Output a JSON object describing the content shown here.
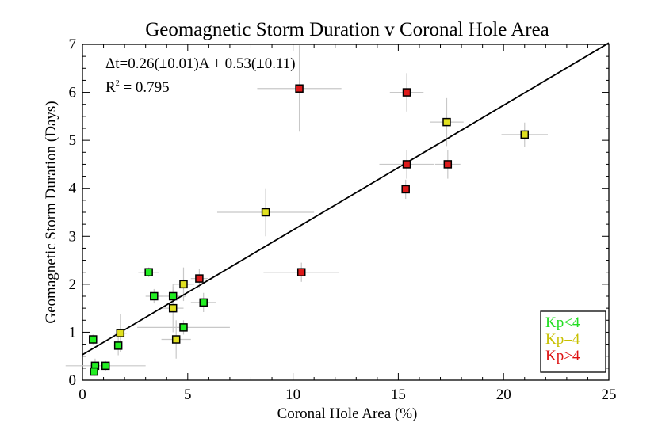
{
  "chart_data": {
    "type": "scatter",
    "title": "Geomagnetic Storm Duration v Coronal Hole Area",
    "xlabel": "Coronal Hole Area (%)",
    "ylabel": "Geomagnetic Storm Duration (Days)",
    "xlim": [
      0,
      25
    ],
    "ylim": [
      0,
      7
    ],
    "xticks": [
      "0",
      "5",
      "10",
      "15",
      "20",
      "25"
    ],
    "yticks": [
      "0",
      "1",
      "2",
      "3",
      "4",
      "5",
      "6",
      "7"
    ],
    "grid": false,
    "annotation": {
      "equation": "Δt=0.26(±0.01)A + 0.53(±0.11)",
      "r2_base": "R",
      "r2_sup": "2",
      "r2_value": " = 0.795"
    },
    "fit": {
      "slope": 0.26,
      "intercept": 0.53
    },
    "legend": {
      "position": "bottom-right",
      "entries": [
        {
          "label": "Kp<4",
          "color": "#22dd22"
        },
        {
          "label": "Kp=4",
          "color": "#c8c000"
        },
        {
          "label": "Kp>4",
          "color": "#dd1111"
        }
      ]
    },
    "series": [
      {
        "name": "Kp<4",
        "color": "#22ee22",
        "points": [
          {
            "x": 0.5,
            "y": 0.85,
            "xerr": 0.15,
            "yerr": 0.1
          },
          {
            "x": 0.6,
            "y": 0.3,
            "xerr": 0.2,
            "yerr": 0.15
          },
          {
            "x": 0.55,
            "y": 0.18,
            "xerr": 0.2,
            "yerr": 0.1
          },
          {
            "x": 1.1,
            "y": 0.3,
            "xerr": 1.9,
            "yerr": 0.1
          },
          {
            "x": 1.7,
            "y": 0.72,
            "xerr": 0.2,
            "yerr": 0.2
          },
          {
            "x": 3.15,
            "y": 2.25,
            "xerr": 0.5,
            "yerr": 0.1
          },
          {
            "x": 3.4,
            "y": 1.75,
            "xerr": 0.4,
            "yerr": 0.15
          },
          {
            "x": 4.3,
            "y": 1.75,
            "xerr": 0.6,
            "yerr": 0.2
          },
          {
            "x": 4.8,
            "y": 1.1,
            "xerr": 2.2,
            "yerr": 0.15
          },
          {
            "x": 5.75,
            "y": 1.62,
            "xerr": 0.6,
            "yerr": 0.2
          }
        ]
      },
      {
        "name": "Kp=4",
        "color": "#e0e020",
        "points": [
          {
            "x": 1.8,
            "y": 0.98,
            "xerr": 0.3,
            "yerr": 0.4
          },
          {
            "x": 4.3,
            "y": 1.5,
            "xerr": 0.5,
            "yerr": 0.5
          },
          {
            "x": 4.45,
            "y": 0.85,
            "xerr": 0.7,
            "yerr": 0.4
          },
          {
            "x": 4.8,
            "y": 2.0,
            "xerr": 0.5,
            "yerr": 0.35
          },
          {
            "x": 8.7,
            "y": 3.5,
            "xerr": 2.3,
            "yerr": 0.5
          },
          {
            "x": 17.3,
            "y": 5.38,
            "xerr": 0.8,
            "yerr": 0.5
          },
          {
            "x": 21.0,
            "y": 5.12,
            "xerr": 1.1,
            "yerr": 0.25
          }
        ]
      },
      {
        "name": "Kp>4",
        "color": "#dd1a1a",
        "points": [
          {
            "x": 5.55,
            "y": 2.12,
            "xerr": 0.4,
            "yerr": 0.2
          },
          {
            "x": 10.3,
            "y": 6.08,
            "xerr": 2.0,
            "yerr": 0.9
          },
          {
            "x": 10.4,
            "y": 2.25,
            "xerr": 1.8,
            "yerr": 0.2
          },
          {
            "x": 15.4,
            "y": 6.0,
            "xerr": 0.8,
            "yerr": 0.4
          },
          {
            "x": 15.4,
            "y": 4.5,
            "xerr": 1.3,
            "yerr": 0.3
          },
          {
            "x": 15.35,
            "y": 3.98,
            "xerr": 0.2,
            "yerr": 0.2
          },
          {
            "x": 17.35,
            "y": 4.5,
            "xerr": 0.6,
            "yerr": 0.3
          }
        ]
      }
    ]
  }
}
